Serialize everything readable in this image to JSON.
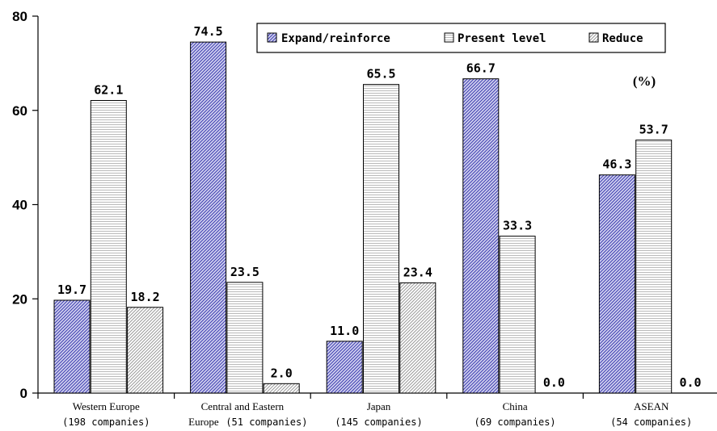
{
  "chart_data": {
    "type": "bar",
    "unit_label": "(%)",
    "ylim": [
      0,
      80
    ],
    "yticks": [
      "0",
      "20",
      "40",
      "60",
      "80"
    ],
    "grid": false,
    "legend_position": "top-right",
    "categories": [
      {
        "line1": "Western Europe",
        "line2": "(198 companies)"
      },
      {
        "line1": "Central and Eastern",
        "line2a": "Europe",
        "line2b": "(51 companies)"
      },
      {
        "line1": "Japan",
        "line2": "(145 companies)"
      },
      {
        "line1": "China",
        "line2": "(69 companies)"
      },
      {
        "line1": "ASEAN",
        "line2": "(54 companies)"
      }
    ],
    "series": [
      {
        "name": "Expand/reinforce",
        "values": [
          19.7,
          74.5,
          11.0,
          66.7,
          46.3
        ],
        "labels": [
          "19.7",
          "74.5",
          "11.0",
          "66.7",
          "46.3"
        ],
        "color": "#3b3bb0"
      },
      {
        "name": "Present level",
        "values": [
          62.1,
          23.5,
          65.5,
          33.3,
          53.7
        ],
        "labels": [
          "62.1",
          "23.5",
          "65.5",
          "33.3",
          "53.7"
        ],
        "color": "#6f6f6f"
      },
      {
        "name": "Reduce",
        "values": [
          18.2,
          2.0,
          23.4,
          0.0,
          0.0
        ],
        "labels": [
          "18.2",
          "2.0",
          "23.4",
          "0.0",
          "0.0"
        ],
        "color": "#555555"
      }
    ]
  }
}
